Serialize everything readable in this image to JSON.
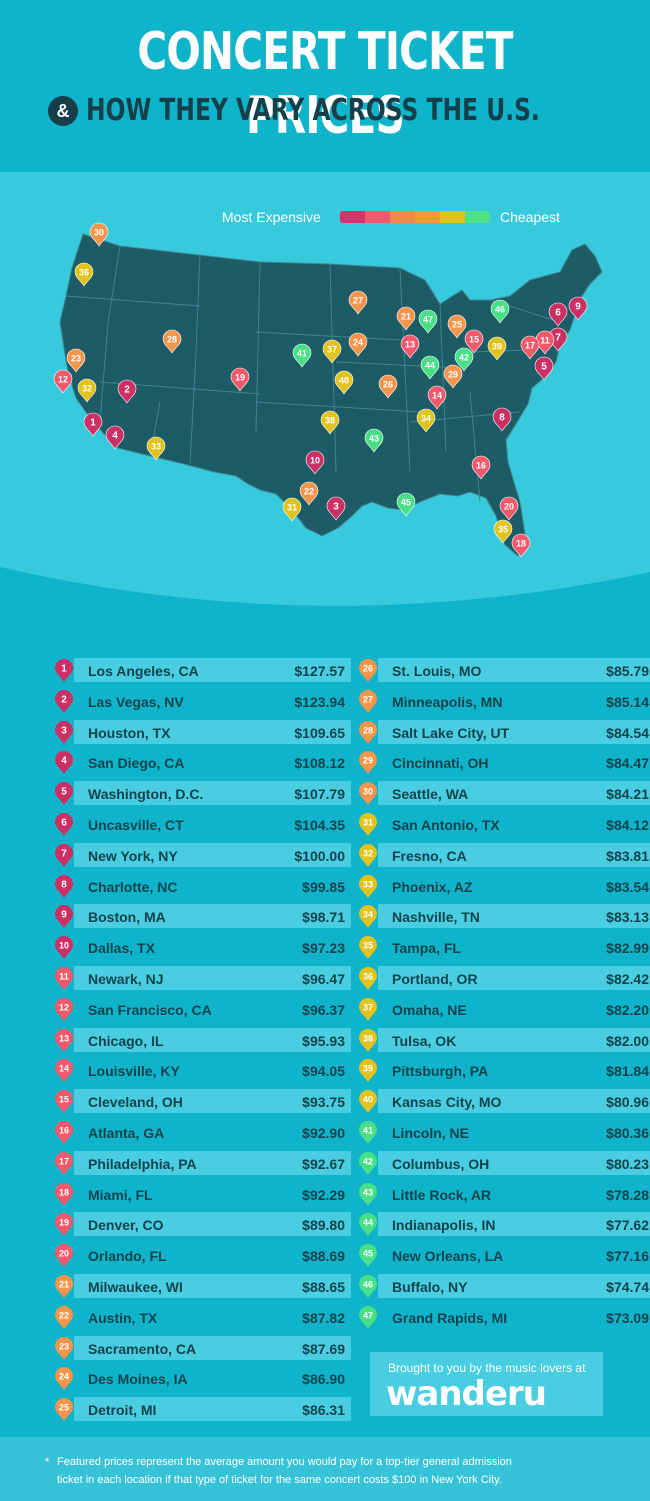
{
  "header": {
    "title": "CONCERT TICKET PRICES",
    "amp": "&",
    "subtitle": "HOW THEY VARY ACROSS THE U.S."
  },
  "legend": {
    "left_label": "Most Expensive",
    "right_label": "Cheapest",
    "colors": [
      "#d6336c",
      "#f2596b",
      "#f5874a",
      "#f59a2c",
      "#e5c21a",
      "#4fe08a"
    ]
  },
  "colors": {
    "tier1": "#cc2f63",
    "tier2": "#f2596b",
    "tier3": "#f5944b",
    "tier4": "#e2c21c",
    "tier5": "#49df86",
    "map_land": "#1d5c66",
    "map_lines": "#3f8691"
  },
  "map_pins": [
    {
      "rank": "1",
      "tier": 1
    },
    {
      "rank": "2",
      "tier": 1
    },
    {
      "rank": "3",
      "tier": 1
    },
    {
      "rank": "4",
      "tier": 1
    },
    {
      "rank": "5",
      "tier": 1
    },
    {
      "rank": "6",
      "tier": 1
    },
    {
      "rank": "7",
      "tier": 1
    },
    {
      "rank": "8",
      "tier": 1
    },
    {
      "rank": "9",
      "tier": 1
    },
    {
      "rank": "10",
      "tier": 1
    },
    {
      "rank": "11",
      "tier": 2
    },
    {
      "rank": "12",
      "tier": 2
    },
    {
      "rank": "13",
      "tier": 2
    },
    {
      "rank": "14",
      "tier": 2
    },
    {
      "rank": "15",
      "tier": 2
    },
    {
      "rank": "16",
      "tier": 2
    },
    {
      "rank": "17",
      "tier": 2
    },
    {
      "rank": "18",
      "tier": 2
    },
    {
      "rank": "19",
      "tier": 2
    },
    {
      "rank": "20",
      "tier": 2
    },
    {
      "rank": "21",
      "tier": 3
    },
    {
      "rank": "22",
      "tier": 3
    },
    {
      "rank": "23",
      "tier": 3
    },
    {
      "rank": "24",
      "tier": 3
    },
    {
      "rank": "25",
      "tier": 3
    },
    {
      "rank": "26",
      "tier": 3
    },
    {
      "rank": "27",
      "tier": 3
    },
    {
      "rank": "28",
      "tier": 3
    },
    {
      "rank": "29",
      "tier": 3
    },
    {
      "rank": "30",
      "tier": 3
    },
    {
      "rank": "31",
      "tier": 4
    },
    {
      "rank": "32",
      "tier": 4
    },
    {
      "rank": "33",
      "tier": 4
    },
    {
      "rank": "34",
      "tier": 4
    },
    {
      "rank": "35",
      "tier": 4
    },
    {
      "rank": "36",
      "tier": 4
    },
    {
      "rank": "37",
      "tier": 4
    },
    {
      "rank": "38",
      "tier": 4
    },
    {
      "rank": "39",
      "tier": 4
    },
    {
      "rank": "40",
      "tier": 4
    },
    {
      "rank": "41",
      "tier": 5
    },
    {
      "rank": "42",
      "tier": 5
    },
    {
      "rank": "43",
      "tier": 5
    },
    {
      "rank": "44",
      "tier": 5
    },
    {
      "rank": "45",
      "tier": 5
    },
    {
      "rank": "46",
      "tier": 5
    },
    {
      "rank": "47",
      "tier": 5
    }
  ],
  "rankings_left": [
    {
      "rank": "1",
      "city": "Los Angeles, CA",
      "price": "$127.57",
      "tier": 1
    },
    {
      "rank": "2",
      "city": "Las Vegas, NV",
      "price": "$123.94",
      "tier": 1
    },
    {
      "rank": "3",
      "city": "Houston, TX",
      "price": "$109.65",
      "tier": 1
    },
    {
      "rank": "4",
      "city": "San Diego, CA",
      "price": "$108.12",
      "tier": 1
    },
    {
      "rank": "5",
      "city": "Washington, D.C.",
      "price": "$107.79",
      "tier": 1
    },
    {
      "rank": "6",
      "city": "Uncasville, CT",
      "price": "$104.35",
      "tier": 1
    },
    {
      "rank": "7",
      "city": "New York, NY",
      "price": "$100.00",
      "tier": 1
    },
    {
      "rank": "8",
      "city": "Charlotte, NC",
      "price": "$99.85",
      "tier": 1
    },
    {
      "rank": "9",
      "city": "Boston, MA",
      "price": "$98.71",
      "tier": 1
    },
    {
      "rank": "10",
      "city": "Dallas, TX",
      "price": "$97.23",
      "tier": 1
    },
    {
      "rank": "11",
      "city": "Newark, NJ",
      "price": "$96.47",
      "tier": 2
    },
    {
      "rank": "12",
      "city": "San Francisco, CA",
      "price": "$96.37",
      "tier": 2
    },
    {
      "rank": "13",
      "city": "Chicago, IL",
      "price": "$95.93",
      "tier": 2
    },
    {
      "rank": "14",
      "city": "Louisville, KY",
      "price": "$94.05",
      "tier": 2
    },
    {
      "rank": "15",
      "city": "Cleveland, OH",
      "price": "$93.75",
      "tier": 2
    },
    {
      "rank": "16",
      "city": "Atlanta, GA",
      "price": "$92.90",
      "tier": 2
    },
    {
      "rank": "17",
      "city": "Philadelphia, PA",
      "price": "$92.67",
      "tier": 2
    },
    {
      "rank": "18",
      "city": "Miami, FL",
      "price": "$92.29",
      "tier": 2
    },
    {
      "rank": "19",
      "city": "Denver, CO",
      "price": "$89.80",
      "tier": 2
    },
    {
      "rank": "20",
      "city": "Orlando, FL",
      "price": "$88.69",
      "tier": 2
    },
    {
      "rank": "21",
      "city": "Milwaukee, WI",
      "price": "$88.65",
      "tier": 3
    },
    {
      "rank": "22",
      "city": "Austin, TX",
      "price": "$87.82",
      "tier": 3
    },
    {
      "rank": "23",
      "city": "Sacramento, CA",
      "price": "$87.69",
      "tier": 3
    },
    {
      "rank": "24",
      "city": "Des Moines, IA",
      "price": "$86.90",
      "tier": 3
    },
    {
      "rank": "25",
      "city": "Detroit, MI",
      "price": "$86.31",
      "tier": 3
    }
  ],
  "rankings_right": [
    {
      "rank": "26",
      "city": "St. Louis, MO",
      "price": "$85.79",
      "tier": 3
    },
    {
      "rank": "27",
      "city": "Minneapolis, MN",
      "price": "$85.14",
      "tier": 3
    },
    {
      "rank": "28",
      "city": "Salt Lake City, UT",
      "price": "$84.54",
      "tier": 3
    },
    {
      "rank": "29",
      "city": "Cincinnati, OH",
      "price": "$84.47",
      "tier": 3
    },
    {
      "rank": "30",
      "city": "Seattle, WA",
      "price": "$84.21",
      "tier": 3
    },
    {
      "rank": "31",
      "city": "San Antonio, TX",
      "price": "$84.12",
      "tier": 4
    },
    {
      "rank": "32",
      "city": "Fresno, CA",
      "price": "$83.81",
      "tier": 4
    },
    {
      "rank": "33",
      "city": "Phoenix, AZ",
      "price": "$83.54",
      "tier": 4
    },
    {
      "rank": "34",
      "city": "Nashville, TN",
      "price": "$83.13",
      "tier": 4
    },
    {
      "rank": "35",
      "city": "Tampa, FL",
      "price": "$82.99",
      "tier": 4
    },
    {
      "rank": "36",
      "city": "Portland, OR",
      "price": "$82.42",
      "tier": 4
    },
    {
      "rank": "37",
      "city": "Omaha, NE",
      "price": "$82.20",
      "tier": 4
    },
    {
      "rank": "38",
      "city": "Tulsa, OK",
      "price": "$82.00",
      "tier": 4
    },
    {
      "rank": "39",
      "city": "Pittsburgh, PA",
      "price": "$81.84",
      "tier": 4
    },
    {
      "rank": "40",
      "city": "Kansas City, MO",
      "price": "$80.96",
      "tier": 4
    },
    {
      "rank": "41",
      "city": "Lincoln, NE",
      "price": "$80.36",
      "tier": 5
    },
    {
      "rank": "42",
      "city": "Columbus, OH",
      "price": "$80.23",
      "tier": 5
    },
    {
      "rank": "43",
      "city": "Little Rock, AR",
      "price": "$78.28",
      "tier": 5
    },
    {
      "rank": "44",
      "city": "Indianapolis, IN",
      "price": "$77.62",
      "tier": 5
    },
    {
      "rank": "45",
      "city": "New Orleans, LA",
      "price": "$77.16",
      "tier": 5
    },
    {
      "rank": "46",
      "city": "Buffalo, NY",
      "price": "$74.74",
      "tier": 5
    },
    {
      "rank": "47",
      "city": "Grand Rapids, MI",
      "price": "$73.09",
      "tier": 5
    }
  ],
  "brand": {
    "tagline": "Brought to you by the music lovers at",
    "logo_text": "wanderu"
  },
  "footnote": {
    "star": "*",
    "line1": "Featured prices represent the average amount you would pay for a top-tier general admission",
    "line2": "ticket in each location if that type of ticket for the same concert costs $100 in New York City."
  }
}
